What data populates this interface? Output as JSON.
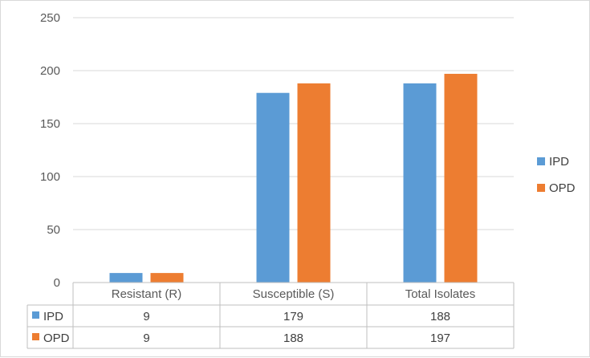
{
  "chart_data": {
    "type": "bar",
    "categories": [
      "Resistant (R)",
      "Susceptible (S)",
      "Total Isolates"
    ],
    "series": [
      {
        "name": "IPD",
        "values": [
          9,
          179,
          188
        ],
        "color": "#5b9bd5"
      },
      {
        "name": "OPD",
        "values": [
          9,
          188,
          197
        ],
        "color": "#ed7d31"
      }
    ],
    "y_ticks": [
      "0",
      "50",
      "100",
      "150",
      "200",
      "250"
    ],
    "ylim": [
      0,
      250
    ],
    "grid": true,
    "legend_position": "right",
    "data_table": true
  }
}
